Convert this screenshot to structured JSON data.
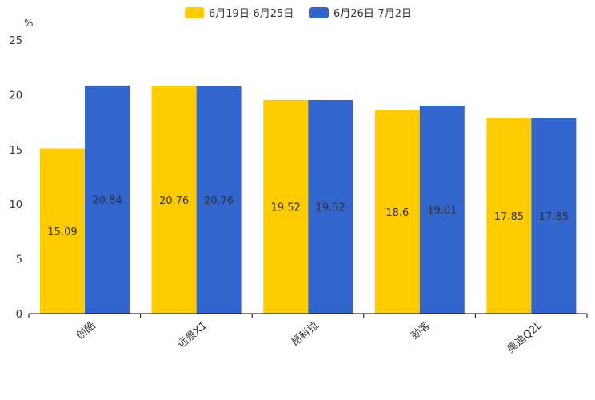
{
  "chart_data": {
    "type": "bar",
    "title": "",
    "xlabel": "",
    "ylabel": "%",
    "ylim": [
      0,
      25
    ],
    "yticks": [
      0,
      5,
      10,
      15,
      20,
      25
    ],
    "grid": false,
    "legend_position": "top-center",
    "categories": [
      "创酷",
      "远景X1",
      "昂科拉",
      "劲客",
      "奥迪Q2L"
    ],
    "series": [
      {
        "name": "6月19日-6月25日",
        "color": "#FFCC00",
        "values": [
          15.09,
          20.76,
          19.52,
          18.6,
          17.85
        ],
        "labels": [
          "15.09",
          "20.76",
          "19.52",
          "18.6",
          "17.85"
        ]
      },
      {
        "name": "6月26日-7月2日",
        "color": "#3366CC",
        "values": [
          20.84,
          20.76,
          19.52,
          19.01,
          17.85
        ],
        "labels": [
          "20.84",
          "20.76",
          "19.52",
          "19.01",
          "17.85"
        ]
      }
    ]
  }
}
